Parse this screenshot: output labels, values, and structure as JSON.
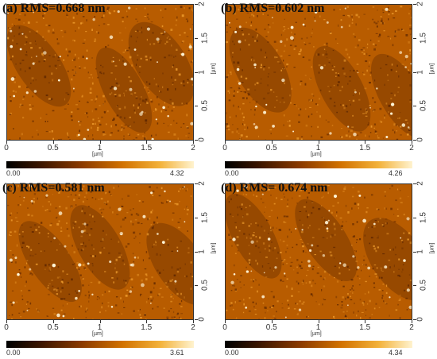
{
  "panels": [
    {
      "label": "(a) RMS=0.668 nm",
      "cmin": "0.00",
      "cmax": "4.32",
      "seed": 11
    },
    {
      "label": "(b) RMS=0.602 nm",
      "cmin": "0.00",
      "cmax": "4.26",
      "seed": 23
    },
    {
      "label": "(c) RMS=0.581 nm",
      "cmin": "0.00",
      "cmax": "3.61",
      "seed": 37
    },
    {
      "label": "(d) RMS= 0.674 nm",
      "cmin": "0.00",
      "cmax": "4.34",
      "seed": 53
    }
  ],
  "x_ticks": [
    "0",
    "0.5",
    "1",
    "1.5",
    "2"
  ],
  "y_ticks": [
    "0",
    "0.5",
    "1",
    "1.5",
    "2"
  ],
  "x_unit": "[µm]",
  "y_unit": "[µm]",
  "colors": {
    "dark": "#5a2400",
    "mid": "#b85c00",
    "light": "#f2a130",
    "spot": "#fff6d8"
  }
}
